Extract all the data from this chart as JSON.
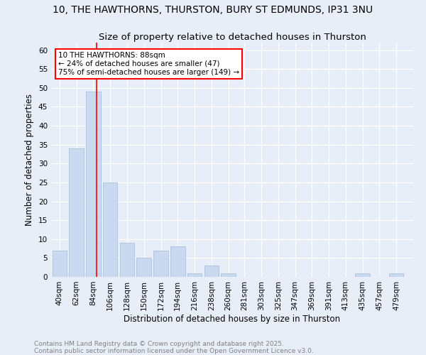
{
  "title": "10, THE HAWTHORNS, THURSTON, BURY ST EDMUNDS, IP31 3NU",
  "subtitle": "Size of property relative to detached houses in Thurston",
  "xlabel": "Distribution of detached houses by size in Thurston",
  "ylabel": "Number of detached properties",
  "bar_labels": [
    "40sqm",
    "62sqm",
    "84sqm",
    "106sqm",
    "128sqm",
    "150sqm",
    "172sqm",
    "194sqm",
    "216sqm",
    "238sqm",
    "260sqm",
    "281sqm",
    "303sqm",
    "325sqm",
    "347sqm",
    "369sqm",
    "391sqm",
    "413sqm",
    "435sqm",
    "457sqm",
    "479sqm"
  ],
  "bar_values": [
    7,
    34,
    49,
    25,
    9,
    5,
    7,
    8,
    1,
    3,
    1,
    0,
    0,
    0,
    0,
    0,
    0,
    0,
    1,
    0,
    1
  ],
  "bar_color": "#c9d9f0",
  "bar_edge_color": "#a0b8d8",
  "property_line_x": 88,
  "annotation_text": "10 THE HAWTHORNS: 88sqm\n← 24% of detached houses are smaller (47)\n75% of semi-detached houses are larger (149) →",
  "annotation_box_color": "white",
  "annotation_box_edge": "red",
  "line_color": "red",
  "ylim": [
    0,
    62
  ],
  "yticks": [
    0,
    5,
    10,
    15,
    20,
    25,
    30,
    35,
    40,
    45,
    50,
    55,
    60
  ],
  "background_color": "#e8eef8",
  "plot_background": "#e8eef8",
  "footer_text": "Contains HM Land Registry data © Crown copyright and database right 2025.\nContains public sector information licensed under the Open Government Licence v3.0.",
  "title_fontsize": 10,
  "subtitle_fontsize": 9.5,
  "axis_label_fontsize": 8.5,
  "tick_fontsize": 7.5,
  "annotation_fontsize": 7.5,
  "footer_fontsize": 6.5
}
